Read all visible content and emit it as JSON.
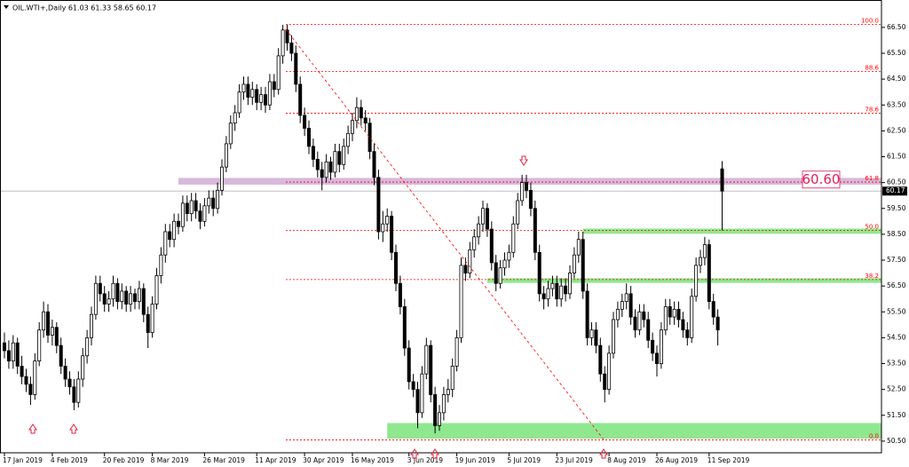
{
  "chart_data": {
    "type": "candlestick",
    "title": "OIL.WTI+,Daily  61.03 61.33 58.65 60.17",
    "up_color": "#ffffff",
    "down_color": "#000000",
    "edge_color": "#000000",
    "ylim": [
      50.05,
      67.56
    ],
    "yticks": [
      {
        "value": 50.5,
        "label": "50.50"
      },
      {
        "value": 51.5,
        "label": "51.50"
      },
      {
        "value": 52.5,
        "label": "52.50"
      },
      {
        "value": 53.5,
        "label": "53.50"
      },
      {
        "value": 54.5,
        "label": "54.50"
      },
      {
        "value": 55.5,
        "label": "55.50"
      },
      {
        "value": 56.5,
        "label": "56.50"
      },
      {
        "value": 57.5,
        "label": "57.50"
      },
      {
        "value": 58.5,
        "label": "58.50"
      },
      {
        "value": 59.5,
        "label": "59.50"
      },
      {
        "value": 60.5,
        "label": "60.50"
      },
      {
        "value": 61.5,
        "label": "61.50"
      },
      {
        "value": 62.5,
        "label": "62.50"
      },
      {
        "value": 63.5,
        "label": "63.50"
      },
      {
        "value": 64.5,
        "label": "64.50"
      },
      {
        "value": 65.5,
        "label": "65.50"
      },
      {
        "value": 66.5,
        "label": "66.50"
      }
    ],
    "xlim": [
      -1.02,
      201.63
    ],
    "xticks": [
      {
        "value": 0,
        "label": "17 Jan 2019"
      },
      {
        "value": 11,
        "label": "4 Feb 2019"
      },
      {
        "value": 23,
        "label": "20 Feb 2019"
      },
      {
        "value": 34,
        "label": "8 Mar 2019"
      },
      {
        "value": 46,
        "label": "26 Mar 2019"
      },
      {
        "value": 58,
        "label": "11 Apr 2019"
      },
      {
        "value": 69,
        "label": "30 Apr 2019"
      },
      {
        "value": 80,
        "label": "16 May 2019"
      },
      {
        "value": 93,
        "label": "3 Jun 2019"
      },
      {
        "value": 104,
        "label": "19 Jun 2019"
      },
      {
        "value": 116,
        "label": "5 Jul 2019"
      },
      {
        "value": 127,
        "label": "23 Jul 2019"
      },
      {
        "value": 139,
        "label": "8 Aug 2019"
      },
      {
        "value": 150,
        "label": "26 Aug 2019"
      },
      {
        "value": 162,
        "label": "11 Sep 2019"
      }
    ],
    "ohlc": [
      [
        54.3,
        54.7,
        53.7,
        54.0
      ],
      [
        54.0,
        54.4,
        53.3,
        53.6
      ],
      [
        53.6,
        54.6,
        53.3,
        54.3
      ],
      [
        54.3,
        54.5,
        53.1,
        53.4
      ],
      [
        53.4,
        53.8,
        52.7,
        53.0
      ],
      [
        53.0,
        53.3,
        52.4,
        52.7
      ],
      [
        52.7,
        53.0,
        51.9,
        52.3
      ],
      [
        52.3,
        53.9,
        52.1,
        53.6
      ],
      [
        53.6,
        55.1,
        53.4,
        54.8
      ],
      [
        54.8,
        55.9,
        54.5,
        55.5
      ],
      [
        55.5,
        55.8,
        54.3,
        54.6
      ],
      [
        54.6,
        55.2,
        54.2,
        54.9
      ],
      [
        54.9,
        55.1,
        53.9,
        54.2
      ],
      [
        54.2,
        54.5,
        53.1,
        53.4
      ],
      [
        53.4,
        53.7,
        52.6,
        52.9
      ],
      [
        52.9,
        53.2,
        52.3,
        52.6
      ],
      [
        52.6,
        52.9,
        51.7,
        52.0
      ],
      [
        52.0,
        53.2,
        51.8,
        52.9
      ],
      [
        52.9,
        54.1,
        52.6,
        53.8
      ],
      [
        53.8,
        54.8,
        53.5,
        54.5
      ],
      [
        54.5,
        55.7,
        54.2,
        55.4
      ],
      [
        55.4,
        56.9,
        55.2,
        56.6
      ],
      [
        56.6,
        56.9,
        55.9,
        56.2
      ],
      [
        56.2,
        56.5,
        55.5,
        55.8
      ],
      [
        55.8,
        56.3,
        55.5,
        56.0
      ],
      [
        56.0,
        56.9,
        55.7,
        56.6
      ],
      [
        56.6,
        56.8,
        55.6,
        55.9
      ],
      [
        55.9,
        56.6,
        55.6,
        56.3
      ],
      [
        56.3,
        56.5,
        55.5,
        55.8
      ],
      [
        55.8,
        56.5,
        55.5,
        56.2
      ],
      [
        56.2,
        56.4,
        55.6,
        55.9
      ],
      [
        55.9,
        56.7,
        55.6,
        56.4
      ],
      [
        56.4,
        56.6,
        55.1,
        55.4
      ],
      [
        55.4,
        55.7,
        54.1,
        54.7
      ],
      [
        54.7,
        56.1,
        54.5,
        55.8
      ],
      [
        55.8,
        57.2,
        55.6,
        56.9
      ],
      [
        56.9,
        58.0,
        56.6,
        57.7
      ],
      [
        57.7,
        58.9,
        57.4,
        58.6
      ],
      [
        58.6,
        58.9,
        58.0,
        58.3
      ],
      [
        58.3,
        59.3,
        58.0,
        59.0
      ],
      [
        59.0,
        59.3,
        58.5,
        58.8
      ],
      [
        58.8,
        60.0,
        58.6,
        59.7
      ],
      [
        59.7,
        60.0,
        59.0,
        59.3
      ],
      [
        59.3,
        60.1,
        59.0,
        59.8
      ],
      [
        59.8,
        60.1,
        59.1,
        59.4
      ],
      [
        59.4,
        59.7,
        58.7,
        59.0
      ],
      [
        59.0,
        59.9,
        58.8,
        59.6
      ],
      [
        59.6,
        60.2,
        59.3,
        59.9
      ],
      [
        59.9,
        60.2,
        59.2,
        59.5
      ],
      [
        59.5,
        60.5,
        59.3,
        60.2
      ],
      [
        60.2,
        61.4,
        60.0,
        61.1
      ],
      [
        61.1,
        62.3,
        60.9,
        62.0
      ],
      [
        62.0,
        63.1,
        61.8,
        62.8
      ],
      [
        62.8,
        63.5,
        62.5,
        63.2
      ],
      [
        63.2,
        64.3,
        63.0,
        64.0
      ],
      [
        64.0,
        64.6,
        63.7,
        64.3
      ],
      [
        64.3,
        64.6,
        63.5,
        63.8
      ],
      [
        63.8,
        64.4,
        63.5,
        64.1
      ],
      [
        64.1,
        64.3,
        63.3,
        63.6
      ],
      [
        63.6,
        64.2,
        63.3,
        63.9
      ],
      [
        63.9,
        64.2,
        63.2,
        63.5
      ],
      [
        63.5,
        64.7,
        63.3,
        64.4
      ],
      [
        64.4,
        64.7,
        63.8,
        64.1
      ],
      [
        64.1,
        65.7,
        63.9,
        65.4
      ],
      [
        65.4,
        66.6,
        65.1,
        66.4
      ],
      [
        66.4,
        66.6,
        65.6,
        65.9
      ],
      [
        65.9,
        66.2,
        65.2,
        65.5
      ],
      [
        65.5,
        65.8,
        64.0,
        64.3
      ],
      [
        64.3,
        64.6,
        62.8,
        63.1
      ],
      [
        63.1,
        63.4,
        62.3,
        62.6
      ],
      [
        62.6,
        62.9,
        61.6,
        61.9
      ],
      [
        61.9,
        62.2,
        61.1,
        61.4
      ],
      [
        61.4,
        61.7,
        60.7,
        61.0
      ],
      [
        61.0,
        61.3,
        60.2,
        60.7
      ],
      [
        60.7,
        61.6,
        60.5,
        61.3
      ],
      [
        61.3,
        61.5,
        60.6,
        60.9
      ],
      [
        60.9,
        62.0,
        60.7,
        61.7
      ],
      [
        61.7,
        62.0,
        60.9,
        61.2
      ],
      [
        61.2,
        62.2,
        61.0,
        61.9
      ],
      [
        61.9,
        62.7,
        61.6,
        62.4
      ],
      [
        62.4,
        63.2,
        62.1,
        62.9
      ],
      [
        62.9,
        63.8,
        62.6,
        63.4
      ],
      [
        63.4,
        63.7,
        62.7,
        63.0
      ],
      [
        63.0,
        63.3,
        62.5,
        62.8
      ],
      [
        62.8,
        63.0,
        61.4,
        61.7
      ],
      [
        61.7,
        62.0,
        60.4,
        60.7
      ],
      [
        60.7,
        61.0,
        58.3,
        58.6
      ],
      [
        58.6,
        59.4,
        58.2,
        58.9
      ],
      [
        58.9,
        59.5,
        58.6,
        59.2
      ],
      [
        59.2,
        59.4,
        57.5,
        57.8
      ],
      [
        57.8,
        58.1,
        56.3,
        56.6
      ],
      [
        56.6,
        56.9,
        55.4,
        55.7
      ],
      [
        55.7,
        56.0,
        53.8,
        54.1
      ],
      [
        54.1,
        54.4,
        52.5,
        52.8
      ],
      [
        52.8,
        53.1,
        52.2,
        52.5
      ],
      [
        52.5,
        52.8,
        51.0,
        51.6
      ],
      [
        51.6,
        53.4,
        51.4,
        53.1
      ],
      [
        53.1,
        54.5,
        52.9,
        54.2
      ],
      [
        54.2,
        54.4,
        52.0,
        52.3
      ],
      [
        52.3,
        52.6,
        50.8,
        51.1
      ],
      [
        51.1,
        51.9,
        50.9,
        51.6
      ],
      [
        51.6,
        52.6,
        51.3,
        52.3
      ],
      [
        52.3,
        52.9,
        52.0,
        52.5
      ],
      [
        52.5,
        53.7,
        52.2,
        53.4
      ],
      [
        53.4,
        54.8,
        53.2,
        54.5
      ],
      [
        54.5,
        57.6,
        54.3,
        57.3
      ],
      [
        57.3,
        57.6,
        56.7,
        57.0
      ],
      [
        57.0,
        58.2,
        56.8,
        57.9
      ],
      [
        57.9,
        58.7,
        57.6,
        58.4
      ],
      [
        58.4,
        59.2,
        58.1,
        58.9
      ],
      [
        58.9,
        59.8,
        58.6,
        59.5
      ],
      [
        59.5,
        59.7,
        58.4,
        58.7
      ],
      [
        58.7,
        59.0,
        57.1,
        57.4
      ],
      [
        57.4,
        57.7,
        56.3,
        56.6
      ],
      [
        56.6,
        57.5,
        56.4,
        57.2
      ],
      [
        57.2,
        57.8,
        56.9,
        57.5
      ],
      [
        57.5,
        58.1,
        57.2,
        57.8
      ],
      [
        57.8,
        59.2,
        57.6,
        58.9
      ],
      [
        58.9,
        60.1,
        58.7,
        59.8
      ],
      [
        59.8,
        60.8,
        59.6,
        60.5
      ],
      [
        60.5,
        60.8,
        59.9,
        60.2
      ],
      [
        60.2,
        60.5,
        59.2,
        59.5
      ],
      [
        59.5,
        59.8,
        57.5,
        57.8
      ],
      [
        57.8,
        58.1,
        55.9,
        56.2
      ],
      [
        56.2,
        56.5,
        55.6,
        56.0
      ],
      [
        56.0,
        56.7,
        55.7,
        56.4
      ],
      [
        56.4,
        56.9,
        56.1,
        56.6
      ],
      [
        56.6,
        56.9,
        55.7,
        56.0
      ],
      [
        56.0,
        56.8,
        55.7,
        56.5
      ],
      [
        56.5,
        56.8,
        55.9,
        56.2
      ],
      [
        56.2,
        57.3,
        56.0,
        57.0
      ],
      [
        57.0,
        58.0,
        56.8,
        57.7
      ],
      [
        57.7,
        58.6,
        57.4,
        58.3
      ],
      [
        58.3,
        58.6,
        56.0,
        56.3
      ],
      [
        56.3,
        56.6,
        54.2,
        54.5
      ],
      [
        54.5,
        55.1,
        54.2,
        54.8
      ],
      [
        54.8,
        55.1,
        53.9,
        54.2
      ],
      [
        54.2,
        54.5,
        52.8,
        53.1
      ],
      [
        53.1,
        53.4,
        52.0,
        52.5
      ],
      [
        52.5,
        54.2,
        52.3,
        53.9
      ],
      [
        53.9,
        55.5,
        53.7,
        55.2
      ],
      [
        55.2,
        55.9,
        54.9,
        55.6
      ],
      [
        55.6,
        56.2,
        55.3,
        55.9
      ],
      [
        55.9,
        56.6,
        55.6,
        56.2
      ],
      [
        56.2,
        56.5,
        55.0,
        55.3
      ],
      [
        55.3,
        55.6,
        54.5,
        54.8
      ],
      [
        54.8,
        55.8,
        54.6,
        55.5
      ],
      [
        55.5,
        55.8,
        54.9,
        55.2
      ],
      [
        55.2,
        55.5,
        54.1,
        54.4
      ],
      [
        54.4,
        54.7,
        53.6,
        53.9
      ],
      [
        53.9,
        54.2,
        53.0,
        53.5
      ],
      [
        53.5,
        55.1,
        53.3,
        54.8
      ],
      [
        54.8,
        56.0,
        54.6,
        55.7
      ],
      [
        55.7,
        56.0,
        55.0,
        55.3
      ],
      [
        55.3,
        55.9,
        55.0,
        55.6
      ],
      [
        55.6,
        55.9,
        54.9,
        55.2
      ],
      [
        55.2,
        55.5,
        54.5,
        54.8
      ],
      [
        54.8,
        55.1,
        54.2,
        54.5
      ],
      [
        54.5,
        56.4,
        54.3,
        56.1
      ],
      [
        56.1,
        57.6,
        55.9,
        57.3
      ],
      [
        57.3,
        57.9,
        57.0,
        57.6
      ],
      [
        57.6,
        58.4,
        57.3,
        58.1
      ],
      [
        58.1,
        58.3,
        55.6,
        55.9
      ],
      [
        55.9,
        56.2,
        55.0,
        55.3
      ],
      [
        55.3,
        55.6,
        54.2,
        54.8
      ],
      [
        61.03,
        61.33,
        58.65,
        60.17
      ]
    ],
    "fib_color": "#ff0000",
    "fib_levels": [
      {
        "label": "100.0",
        "price": 66.62
      },
      {
        "label": "88.6",
        "price": 64.8
      },
      {
        "label": "78.6",
        "price": 63.18
      },
      {
        "label": "61.8",
        "price": 60.52
      },
      {
        "label": "50.0",
        "price": 58.65
      },
      {
        "label": "38.2",
        "price": 56.75
      },
      {
        "label": "0.0",
        "price": 50.55
      }
    ],
    "zones": [
      {
        "low": 60.42,
        "high": 60.68,
        "from_bar": 40,
        "color": "#d8b8dc"
      },
      {
        "low": 58.52,
        "high": 58.72,
        "from_bar": 133,
        "color": "#8fe88f"
      },
      {
        "low": 56.62,
        "high": 56.8,
        "from_bar": 111,
        "color": "#8fe88f"
      },
      {
        "low": 50.6,
        "high": 51.2,
        "from_bar": 88,
        "color": "#8fe88f"
      }
    ],
    "annotation": {
      "value": 60.6,
      "label": "60.60"
    },
    "last_price": {
      "value": 60.17,
      "label": "60.17"
    }
  }
}
